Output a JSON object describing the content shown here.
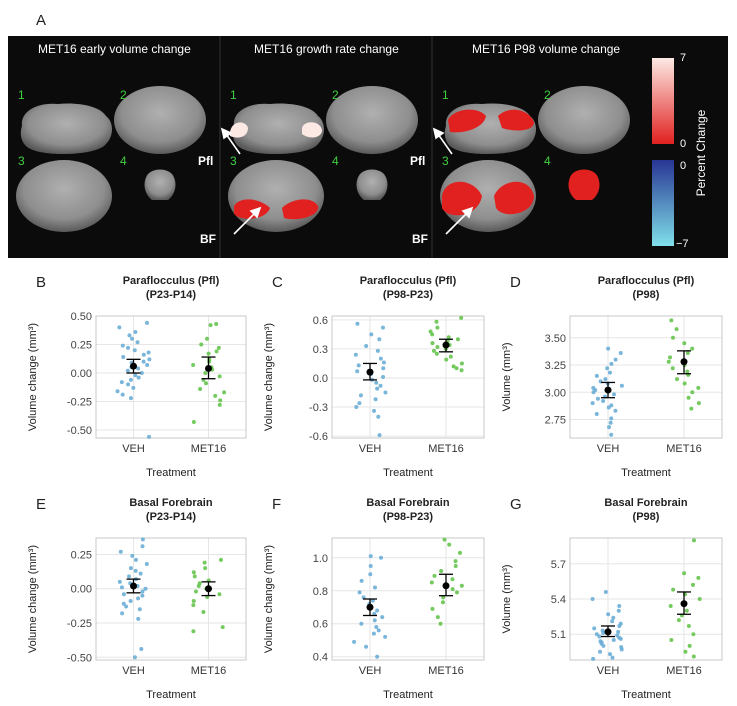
{
  "panel_letters": {
    "A": "A",
    "B": "B",
    "C": "C",
    "D": "D",
    "E": "E",
    "F": "F",
    "G": "G"
  },
  "mri": {
    "titles": [
      "MET16 early volume change",
      "MET16 growth rate change",
      "MET16 P98 volume change"
    ],
    "slice_numbers": [
      "1",
      "2",
      "3",
      "4"
    ],
    "labels": {
      "pfl": "Pfl",
      "bf": "BF"
    },
    "colorbar": {
      "title": "Percent Change",
      "ticks": [
        "7",
        "0",
        "0",
        "−7"
      ],
      "colors": {
        "high": "#fde9e4",
        "pos_low": "#e0211f",
        "neg_low": "#283593",
        "neg_high": "#80e0ea"
      }
    }
  },
  "colors": {
    "veh": "#6baed6",
    "met16": "#66c44e",
    "mean": "#000000",
    "grid": "#e6e6e6"
  },
  "chart_data": [
    {
      "panel": "B",
      "type": "scatter",
      "title": "Paraflocculus (Pfl)",
      "subtitle": "(P23-P14)",
      "xlabel": "Treatment",
      "ylabel": "Volume change (mm³)",
      "categories": [
        "VEH",
        "MET16"
      ],
      "ylim": [
        -0.57,
        0.5
      ],
      "yticks": [
        -0.5,
        -0.25,
        0.0,
        0.25,
        0.5
      ],
      "ytick_labels": [
        "-0.50",
        "-0.25",
        "0.00",
        "0.25",
        "0.50"
      ],
      "summary": [
        {
          "category": "VEH",
          "mean": 0.06,
          "lower": 0.0,
          "upper": 0.12
        },
        {
          "category": "MET16",
          "mean": 0.04,
          "lower": -0.05,
          "upper": 0.14
        }
      ],
      "series": [
        {
          "category": "VEH",
          "values": [
            0.44,
            0.4,
            0.36,
            0.33,
            0.3,
            0.27,
            0.24,
            0.22,
            0.2,
            0.18,
            0.16,
            0.14,
            0.12,
            0.1,
            0.09,
            0.07,
            0.05,
            0.04,
            0.02,
            0.0,
            -0.02,
            -0.04,
            -0.06,
            -0.08,
            -0.1,
            -0.13,
            -0.16,
            -0.19,
            -0.22,
            -0.56
          ]
        },
        {
          "category": "MET16",
          "values": [
            0.43,
            0.42,
            0.3,
            0.25,
            0.22,
            0.19,
            0.17,
            0.12,
            0.1,
            0.07,
            0.05,
            0.03,
            0.0,
            -0.03,
            -0.06,
            -0.09,
            -0.14,
            -0.17,
            -0.2,
            -0.24,
            -0.28,
            -0.43
          ]
        }
      ]
    },
    {
      "panel": "C",
      "type": "scatter",
      "title": "Paraflocculus (Pfl)",
      "subtitle": "(P98-P23)",
      "xlabel": "Treatment",
      "ylabel": "Volume change (mm³)",
      "categories": [
        "VEH",
        "MET16"
      ],
      "ylim": [
        -0.62,
        0.64
      ],
      "yticks": [
        -0.6,
        -0.3,
        0.0,
        0.3,
        0.6
      ],
      "ytick_labels": [
        "-0.6",
        "-0.3",
        "0.0",
        "0.3",
        "0.6"
      ],
      "summary": [
        {
          "category": "VEH",
          "mean": 0.06,
          "lower": -0.02,
          "upper": 0.15
        },
        {
          "category": "MET16",
          "mean": 0.34,
          "lower": 0.27,
          "upper": 0.4
        }
      ],
      "series": [
        {
          "category": "VEH",
          "values": [
            0.56,
            0.52,
            0.45,
            0.4,
            0.33,
            0.28,
            0.24,
            0.2,
            0.16,
            0.13,
            0.1,
            0.07,
            0.04,
            0.01,
            -0.02,
            -0.05,
            -0.08,
            -0.11,
            -0.15,
            -0.18,
            -0.22,
            -0.26,
            -0.3,
            -0.34,
            -0.4,
            -0.59
          ]
        },
        {
          "category": "MET16",
          "values": [
            0.62,
            0.58,
            0.52,
            0.48,
            0.45,
            0.42,
            0.4,
            0.38,
            0.36,
            0.34,
            0.32,
            0.3,
            0.28,
            0.25,
            0.22,
            0.19,
            0.15,
            0.12,
            0.1,
            0.08
          ]
        }
      ]
    },
    {
      "panel": "D",
      "type": "scatter",
      "title": "Paraflocculus (Pfl)",
      "subtitle": "(P98)",
      "xlabel": "Treatment",
      "ylabel": "Volume (mm³)",
      "categories": [
        "VEH",
        "MET16"
      ],
      "ylim": [
        2.58,
        3.7
      ],
      "yticks": [
        2.75,
        3.0,
        3.25,
        3.5
      ],
      "ytick_labels": [
        "2.75",
        "3.00",
        "3.25",
        "3.50"
      ],
      "summary": [
        {
          "category": "VEH",
          "mean": 3.02,
          "lower": 2.95,
          "upper": 3.09
        },
        {
          "category": "MET16",
          "mean": 3.28,
          "lower": 3.17,
          "upper": 3.38
        }
      ],
      "series": [
        {
          "category": "VEH",
          "values": [
            3.4,
            3.36,
            3.3,
            3.26,
            3.22,
            3.18,
            3.15,
            3.12,
            3.1,
            3.08,
            3.06,
            3.04,
            3.02,
            3.0,
            2.98,
            2.96,
            2.94,
            2.92,
            2.9,
            2.88,
            2.86,
            2.83,
            2.8,
            2.76,
            2.72,
            2.68,
            2.61
          ]
        },
        {
          "category": "MET16",
          "values": [
            3.66,
            3.58,
            3.5,
            3.45,
            3.4,
            3.36,
            3.32,
            3.28,
            3.25,
            3.22,
            3.19,
            3.16,
            3.12,
            3.08,
            3.04,
            3.0,
            2.95,
            2.9,
            2.85
          ]
        }
      ]
    },
    {
      "panel": "E",
      "type": "scatter",
      "title": "Basal Forebrain",
      "subtitle": "(P23-P14)",
      "xlabel": "Treatment",
      "ylabel": "Volume change (mm³)",
      "categories": [
        "VEH",
        "MET16"
      ],
      "ylim": [
        -0.52,
        0.37
      ],
      "yticks": [
        -0.5,
        -0.25,
        0.0,
        0.25
      ],
      "ytick_labels": [
        "-0.50",
        "-0.25",
        "0.00",
        "0.25"
      ],
      "summary": [
        {
          "category": "VEH",
          "mean": 0.02,
          "lower": -0.03,
          "upper": 0.07
        },
        {
          "category": "MET16",
          "mean": 0.0,
          "lower": -0.05,
          "upper": 0.05
        }
      ],
      "series": [
        {
          "category": "VEH",
          "values": [
            0.36,
            0.31,
            0.27,
            0.24,
            0.21,
            0.18,
            0.15,
            0.13,
            0.11,
            0.09,
            0.07,
            0.05,
            0.04,
            0.02,
            0.01,
            0.0,
            -0.02,
            -0.04,
            -0.05,
            -0.07,
            -0.09,
            -0.11,
            -0.13,
            -0.15,
            -0.18,
            -0.22,
            -0.44,
            -0.5
          ]
        },
        {
          "category": "MET16",
          "values": [
            0.21,
            0.19,
            0.15,
            0.12,
            0.09,
            0.06,
            0.04,
            0.02,
            0.0,
            -0.02,
            -0.04,
            -0.06,
            -0.09,
            -0.12,
            -0.17,
            -0.28,
            -0.31
          ]
        }
      ]
    },
    {
      "panel": "F",
      "type": "scatter",
      "title": "Basal Forebrain",
      "subtitle": "(P98-P23)",
      "xlabel": "Treatment",
      "ylabel": "Volume change (mm³)",
      "categories": [
        "VEH",
        "MET16"
      ],
      "ylim": [
        0.38,
        1.12
      ],
      "yticks": [
        0.4,
        0.6,
        0.8,
        1.0
      ],
      "ytick_labels": [
        "0.4",
        "0.6",
        "0.8",
        "1.0"
      ],
      "summary": [
        {
          "category": "VEH",
          "mean": 0.7,
          "lower": 0.65,
          "upper": 0.75
        },
        {
          "category": "MET16",
          "mean": 0.83,
          "lower": 0.77,
          "upper": 0.9
        }
      ],
      "series": [
        {
          "category": "VEH",
          "values": [
            1.01,
            1.0,
            0.95,
            0.9,
            0.86,
            0.82,
            0.79,
            0.76,
            0.74,
            0.72,
            0.7,
            0.68,
            0.66,
            0.64,
            0.62,
            0.6,
            0.58,
            0.56,
            0.54,
            0.52,
            0.49,
            0.46,
            0.4
          ]
        },
        {
          "category": "MET16",
          "values": [
            1.11,
            1.08,
            1.03,
            0.98,
            0.95,
            0.92,
            0.89,
            0.87,
            0.85,
            0.83,
            0.81,
            0.79,
            0.76,
            0.73,
            0.69,
            0.64,
            0.6
          ]
        }
      ]
    },
    {
      "panel": "G",
      "type": "scatter",
      "title": "Basal Forebrain",
      "subtitle": "(P98)",
      "xlabel": "Treatment",
      "ylabel": "Volume (mm³)",
      "categories": [
        "VEH",
        "MET16"
      ],
      "ylim": [
        4.88,
        5.92
      ],
      "yticks": [
        5.1,
        5.4,
        5.7
      ],
      "ytick_labels": [
        "5.1",
        "5.4",
        "5.7"
      ],
      "summary": [
        {
          "category": "VEH",
          "mean": 5.12,
          "lower": 5.08,
          "upper": 5.17
        },
        {
          "category": "MET16",
          "mean": 5.36,
          "lower": 5.27,
          "upper": 5.46
        }
      ],
      "series": [
        {
          "category": "VEH",
          "values": [
            5.46,
            5.4,
            5.34,
            5.3,
            5.27,
            5.24,
            5.21,
            5.19,
            5.17,
            5.15,
            5.13,
            5.12,
            5.11,
            5.1,
            5.09,
            5.08,
            5.07,
            5.06,
            5.05,
            5.04,
            5.03,
            5.02,
            5.0,
            4.99,
            4.97,
            4.95,
            4.93,
            4.9,
            4.89
          ]
        },
        {
          "category": "MET16",
          "values": [
            5.9,
            5.62,
            5.58,
            5.52,
            5.48,
            5.44,
            5.4,
            5.37,
            5.34,
            5.3,
            5.26,
            5.22,
            5.17,
            5.1,
            5.05,
            5.0,
            4.95,
            4.91
          ]
        }
      ]
    }
  ]
}
